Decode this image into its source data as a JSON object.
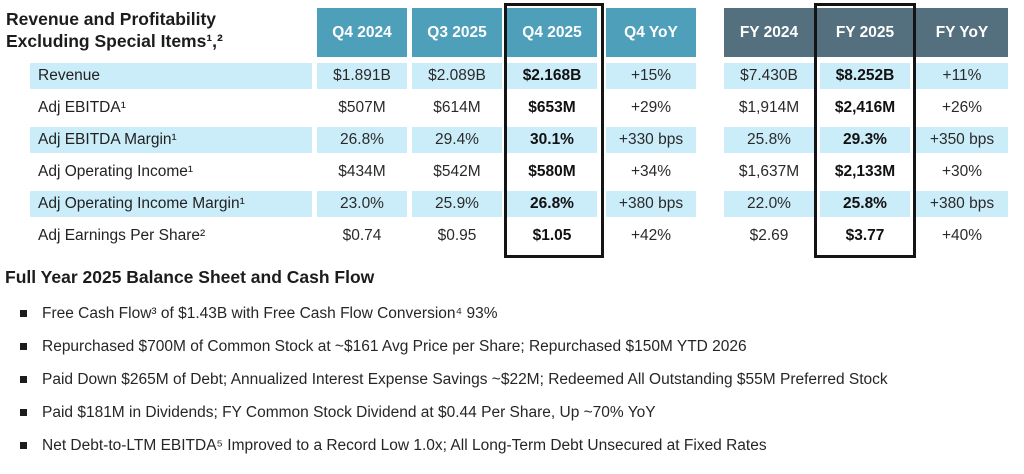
{
  "title": {
    "line1": "Revenue and Profitability",
    "line2": "Excluding Special Items¹,²"
  },
  "table": {
    "columns": [
      {
        "label": "Q4 2024",
        "group": "quarter",
        "highlight": false
      },
      {
        "label": "Q3 2025",
        "group": "quarter",
        "highlight": false
      },
      {
        "label": "Q4 2025",
        "group": "quarter",
        "highlight": true
      },
      {
        "label": "Q4 YoY",
        "group": "quarter",
        "highlight": false
      },
      {
        "label": "FY 2024",
        "group": "full-year",
        "highlight": false
      },
      {
        "label": "FY 2025",
        "group": "full-year",
        "highlight": true
      },
      {
        "label": "FY YoY",
        "group": "full-year",
        "highlight": false
      }
    ],
    "rows": [
      {
        "label": "Revenue",
        "values": [
          "$1.891B",
          "$2.089B",
          "$2.168B",
          "+15%",
          "$7.430B",
          "$8.252B",
          "+11%"
        ]
      },
      {
        "label": "Adj EBITDA¹",
        "values": [
          "$507M",
          "$614M",
          "$653M",
          "+29%",
          "$1,914M",
          "$2,416M",
          "+26%"
        ]
      },
      {
        "label": "Adj EBITDA Margin¹",
        "values": [
          "26.8%",
          "29.4%",
          "30.1%",
          "+330 bps",
          "25.8%",
          "29.3%",
          "+350 bps"
        ]
      },
      {
        "label": "Adj Operating Income¹",
        "values": [
          "$434M",
          "$542M",
          "$580M",
          "+34%",
          "$1,637M",
          "$2,133M",
          "+30%"
        ]
      },
      {
        "label": "Adj Operating Income Margin¹",
        "values": [
          "23.0%",
          "25.9%",
          "26.8%",
          "+380 bps",
          "22.0%",
          "25.8%",
          "+380 bps"
        ]
      },
      {
        "label": "Adj Earnings Per Share²",
        "values": [
          "$0.74",
          "$0.95",
          "$1.05",
          "+42%",
          "$2.69",
          "$3.77",
          "+40%"
        ]
      }
    ]
  },
  "section": {
    "heading": "Full Year 2025 Balance Sheet and Cash Flow",
    "bullets": [
      "Free Cash Flow³ of $1.43B with Free Cash Flow Conversion⁴ 93%",
      "Repurchased $700M of Common Stock at ~$161 Avg Price per Share; Repurchased $150M YTD 2026",
      "Paid Down $265M of Debt; Annualized Interest Expense Savings ~$22M; Redeemed All Outstanding $55M Preferred Stock",
      "Paid $181M in Dividends; FY Common Stock Dividend at $0.44 Per Share, Up ~70% YoY",
      "Net Debt-to-LTM EBITDA⁵ Improved to a Record Low 1.0x; All Long-Term Debt Unsecured at Fixed Rates"
    ]
  },
  "colors": {
    "quarter_header_bg": "#4E9FBA",
    "fy_header_bg": "#546F7E",
    "stripe_bg": "#CBEDFA",
    "highlight_box_border": "#141414",
    "header_text": "#FFFFFF",
    "body_text": "#262626"
  }
}
